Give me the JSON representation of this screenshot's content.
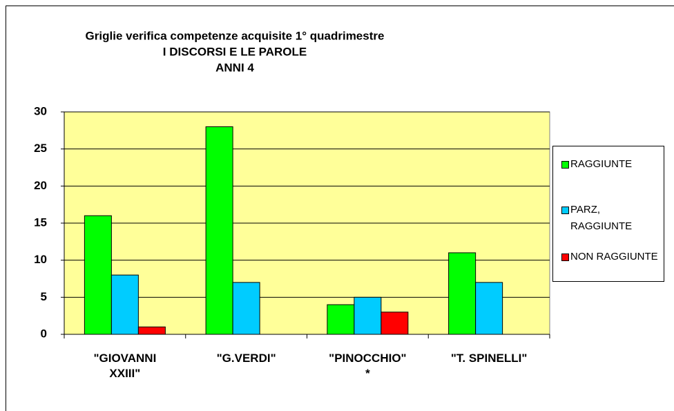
{
  "chart_data": {
    "type": "bar",
    "title": "Griglie verifica competenze acquisite 1° quadrimestre",
    "subtitle": [
      "I DISCORSI E LE PAROLE",
      "ANNI 4"
    ],
    "categories": [
      "\"GIOVANNI\nXXIII\"",
      "\"G.VERDI\"",
      "\"PINOCCHIO\"\n*",
      "\"T. SPINELLI\""
    ],
    "series": [
      {
        "name": "RAGGIUNTE",
        "color": "#00ff00",
        "values": [
          16,
          28,
          4,
          11
        ]
      },
      {
        "name": "PARZ, RAGGIUNTE",
        "color": "#00ccff",
        "values": [
          8,
          7,
          5,
          7
        ]
      },
      {
        "name": "NON RAGGIUNTE",
        "color": "#ff0000",
        "values": [
          1,
          0,
          3,
          0
        ]
      }
    ],
    "ylim": [
      0,
      30
    ],
    "yticks": [
      0,
      5,
      10,
      15,
      20,
      25,
      30
    ],
    "grid": true,
    "legend": "right"
  }
}
